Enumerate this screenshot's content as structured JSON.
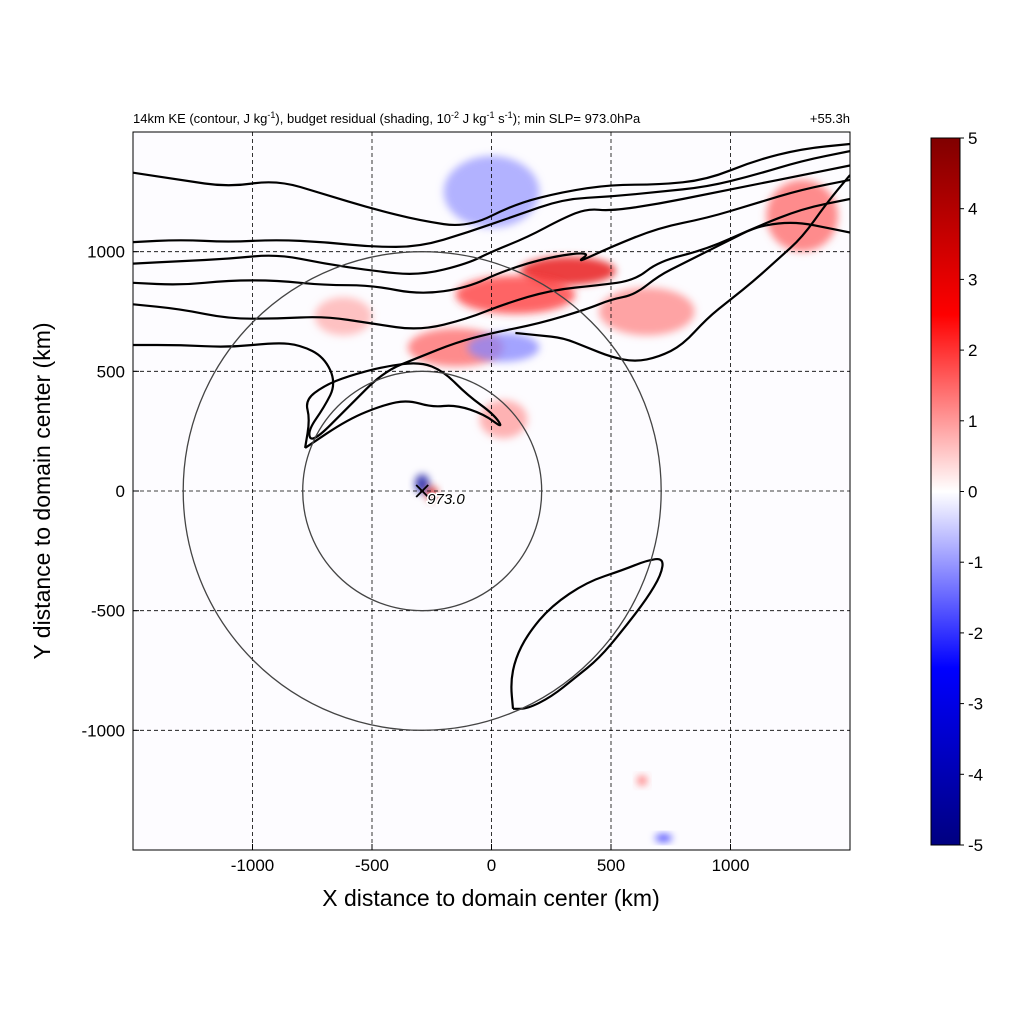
{
  "chart_data": {
    "type": "heatmap",
    "title": {
      "prefix": "14km KE (contour, J kg",
      "sup1": "-1",
      "mid1": "), budget residual (shading, 10",
      "sup2": "-2",
      "mid2": " J kg",
      "sup3": "-1",
      "mid3": " s",
      "sup4": "-1",
      "suffix": "); min SLP= 973.0hPa"
    },
    "time_label": "+55.3h",
    "xlabel": "X distance to domain center (km)",
    "ylabel": "Y distance to domain center (km)",
    "xlim": [
      -1500,
      1500
    ],
    "ylim": [
      -1500,
      1500
    ],
    "xticks": [
      -1000,
      -500,
      0,
      500,
      1000
    ],
    "yticks": [
      -1000,
      -500,
      0,
      500,
      1000
    ],
    "xtick_labels": [
      "-1000",
      "-500",
      "0",
      "500",
      "1000"
    ],
    "ytick_labels": [
      "-1000",
      "-500",
      "0",
      "500",
      "1000"
    ],
    "grid": true,
    "colorbar": {
      "min": -5,
      "max": 5,
      "ticks": [
        5,
        4,
        3,
        2,
        1,
        0,
        -1,
        -2,
        -3,
        -4,
        -5
      ],
      "tick_labels": [
        "5",
        "4",
        "3",
        "2",
        "1",
        "0",
        "-1",
        "-2",
        "-3",
        "-4",
        "-5"
      ],
      "colors": {
        "low": "#000080",
        "mid_low": "#0000ff",
        "zero": "#ffffff",
        "mid_high": "#ff0000",
        "high": "#800000"
      }
    },
    "storm_center": {
      "x": -290,
      "y": 0,
      "label": "973.0"
    },
    "range_circles": [
      {
        "cx": -290,
        "cy": 0,
        "radius": 500
      },
      {
        "cx": -290,
        "cy": 0,
        "radius": 1000
      }
    ],
    "shading_features": [
      {
        "x": -290,
        "y": 30,
        "value": -4.5,
        "rx": 30,
        "ry": 40
      },
      {
        "x": -250,
        "y": -10,
        "value": 3.5,
        "rx": 25,
        "ry": 30
      },
      {
        "x": 320,
        "y": 920,
        "value": 3.0,
        "rx": 200,
        "ry": 60
      },
      {
        "x": 100,
        "y": 820,
        "value": 2.0,
        "rx": 250,
        "ry": 80
      },
      {
        "x": -150,
        "y": 600,
        "value": 1.5,
        "rx": 200,
        "ry": 80
      },
      {
        "x": 50,
        "y": 600,
        "value": -1.2,
        "rx": 150,
        "ry": 60
      },
      {
        "x": 0,
        "y": 1250,
        "value": -1.0,
        "rx": 200,
        "ry": 150
      },
      {
        "x": 650,
        "y": 750,
        "value": 1.2,
        "rx": 200,
        "ry": 100
      },
      {
        "x": 1300,
        "y": 1150,
        "value": 1.5,
        "rx": 150,
        "ry": 150
      },
      {
        "x": 50,
        "y": 300,
        "value": 1.0,
        "rx": 100,
        "ry": 80
      },
      {
        "x": 630,
        "y": -1210,
        "value": 1.8,
        "rx": 20,
        "ry": 20
      },
      {
        "x": 720,
        "y": -1450,
        "value": -2.5,
        "rx": 35,
        "ry": 15
      },
      {
        "x": -620,
        "y": 730,
        "value": 0.8,
        "rx": 120,
        "ry": 80
      }
    ],
    "ke_contours": [
      {
        "level": "c1",
        "points": [
          [
            -1500,
            1330
          ],
          [
            -1300,
            1300
          ],
          [
            -1100,
            1270
          ],
          [
            -900,
            1300
          ],
          [
            -700,
            1240
          ],
          [
            -500,
            1180
          ],
          [
            -300,
            1130
          ],
          [
            -100,
            1100
          ],
          [
            100,
            1200
          ],
          [
            300,
            1250
          ],
          [
            500,
            1280
          ],
          [
            700,
            1280
          ],
          [
            900,
            1300
          ],
          [
            1100,
            1380
          ],
          [
            1300,
            1430
          ],
          [
            1500,
            1450
          ]
        ]
      },
      {
        "level": "c2",
        "points": [
          [
            -1500,
            1040
          ],
          [
            -1300,
            1050
          ],
          [
            -1100,
            1040
          ],
          [
            -900,
            1050
          ],
          [
            -700,
            1040
          ],
          [
            -500,
            1020
          ],
          [
            -300,
            1020
          ],
          [
            -100,
            1080
          ],
          [
            100,
            1150
          ],
          [
            300,
            1220
          ],
          [
            500,
            1230
          ],
          [
            700,
            1250
          ],
          [
            900,
            1270
          ],
          [
            1100,
            1320
          ],
          [
            1300,
            1380
          ],
          [
            1500,
            1420
          ]
        ]
      },
      {
        "level": "c3",
        "points": [
          [
            -1500,
            950
          ],
          [
            -1300,
            960
          ],
          [
            -1100,
            970
          ],
          [
            -900,
            990
          ],
          [
            -700,
            950
          ],
          [
            -500,
            920
          ],
          [
            -300,
            900
          ],
          [
            -100,
            950
          ],
          [
            0,
            1000
          ],
          [
            150,
            1060
          ],
          [
            300,
            1140
          ],
          [
            400,
            1180
          ],
          [
            500,
            1170
          ],
          [
            700,
            1200
          ],
          [
            900,
            1240
          ],
          [
            1100,
            1280
          ],
          [
            1300,
            1320
          ],
          [
            1500,
            1360
          ]
        ]
      },
      {
        "level": "c4",
        "points": [
          [
            -1500,
            870
          ],
          [
            -1300,
            860
          ],
          [
            -1100,
            880
          ],
          [
            -900,
            880
          ],
          [
            -700,
            860
          ],
          [
            -500,
            860
          ],
          [
            -300,
            820
          ],
          [
            -100,
            850
          ],
          [
            50,
            920
          ],
          [
            250,
            980
          ],
          [
            420,
            1000
          ],
          [
            350,
            950
          ],
          [
            500,
            1020
          ],
          [
            700,
            1100
          ],
          [
            900,
            1140
          ],
          [
            1100,
            1200
          ],
          [
            1300,
            1260
          ],
          [
            1500,
            1300
          ]
        ]
      },
      {
        "level": "c5",
        "points": [
          [
            -1500,
            780
          ],
          [
            -1300,
            760
          ],
          [
            -1100,
            720
          ],
          [
            -900,
            720
          ],
          [
            -700,
            730
          ],
          [
            -500,
            700
          ],
          [
            -300,
            670
          ],
          [
            -100,
            720
          ],
          [
            50,
            780
          ],
          [
            250,
            840
          ],
          [
            450,
            860
          ],
          [
            600,
            880
          ],
          [
            700,
            960
          ],
          [
            900,
            1010
          ],
          [
            1100,
            1100
          ],
          [
            1300,
            1180
          ],
          [
            1500,
            1220
          ]
        ]
      },
      {
        "level": "c6",
        "points": [
          [
            -1500,
            610
          ],
          [
            -1300,
            610
          ],
          [
            -1100,
            600
          ],
          [
            -900,
            620
          ],
          [
            -800,
            610
          ],
          [
            -700,
            560
          ],
          [
            -650,
            450
          ],
          [
            -700,
            350
          ],
          [
            -770,
            250
          ],
          [
            -750,
            200
          ],
          [
            -600,
            350
          ],
          [
            -450,
            500
          ],
          [
            -300,
            560
          ],
          [
            -150,
            620
          ],
          [
            0,
            660
          ],
          [
            200,
            700
          ],
          [
            400,
            760
          ],
          [
            500,
            800
          ],
          [
            600,
            820
          ],
          [
            700,
            900
          ],
          [
            800,
            950
          ],
          [
            900,
            1000
          ],
          [
            1000,
            1050
          ],
          [
            1100,
            1100
          ],
          [
            1200,
            1120
          ],
          [
            1300,
            1120
          ],
          [
            1400,
            1100
          ],
          [
            1500,
            1080
          ]
        ]
      },
      {
        "level": "c7",
        "points": [
          [
            -780,
            180
          ],
          [
            -600,
            300
          ],
          [
            -450,
            360
          ],
          [
            -350,
            380
          ],
          [
            -250,
            350
          ],
          [
            -150,
            360
          ],
          [
            -30,
            320
          ],
          [
            50,
            260
          ],
          [
            10,
            320
          ],
          [
            -100,
            400
          ],
          [
            -200,
            500
          ],
          [
            -300,
            540
          ],
          [
            -450,
            520
          ],
          [
            -600,
            480
          ],
          [
            -700,
            440
          ],
          [
            -780,
            380
          ],
          [
            -760,
            300
          ],
          [
            -780,
            180
          ]
        ]
      },
      {
        "level": "c8",
        "points": [
          [
            1500,
            1320
          ],
          [
            1400,
            1200
          ],
          [
            1300,
            1060
          ],
          [
            1200,
            970
          ],
          [
            1100,
            880
          ],
          [
            1000,
            800
          ],
          [
            900,
            720
          ],
          [
            800,
            610
          ],
          [
            700,
            560
          ],
          [
            600,
            540
          ],
          [
            500,
            560
          ],
          [
            400,
            600
          ],
          [
            300,
            640
          ],
          [
            200,
            650
          ],
          [
            100,
            660
          ]
        ]
      },
      {
        "level": "c9",
        "points": [
          [
            90,
            -910
          ],
          [
            80,
            -800
          ],
          [
            100,
            -700
          ],
          [
            150,
            -600
          ],
          [
            250,
            -480
          ],
          [
            400,
            -380
          ],
          [
            550,
            -330
          ],
          [
            650,
            -290
          ],
          [
            720,
            -280
          ],
          [
            710,
            -350
          ],
          [
            650,
            -450
          ],
          [
            550,
            -580
          ],
          [
            450,
            -700
          ],
          [
            350,
            -780
          ],
          [
            250,
            -860
          ],
          [
            150,
            -910
          ],
          [
            90,
            -910
          ]
        ]
      }
    ]
  }
}
